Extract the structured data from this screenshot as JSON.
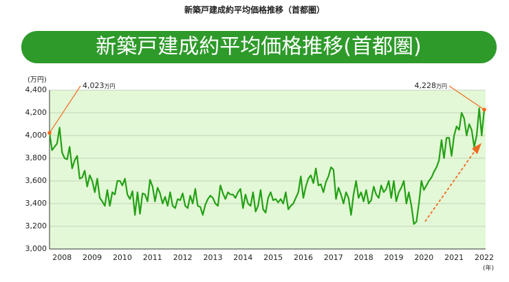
{
  "chart_data": {
    "type": "line",
    "title": "新築戸建成約平均価格推移（首都圏）",
    "banner": "新築戸建成約平均価格推移(首都圏)",
    "y_label": "(万円)",
    "x_label": "(年)",
    "categories": [
      null,
      null,
      null,
      null,
      null,
      "2008",
      null,
      null,
      null,
      null,
      null,
      null,
      null,
      null,
      null,
      null,
      null,
      "2009",
      null,
      null,
      null,
      null,
      null,
      null,
      null,
      null,
      null,
      null,
      null,
      "2010",
      null,
      null,
      null,
      null,
      null,
      null,
      null,
      null,
      null,
      null,
      null,
      "2011",
      null,
      null,
      null,
      null,
      null,
      null,
      null,
      null,
      null,
      null,
      null,
      "2012",
      null,
      null,
      null,
      null,
      null,
      null,
      null,
      null,
      null,
      null,
      null,
      "2013",
      null,
      null,
      null,
      null,
      null,
      null,
      null,
      null,
      null,
      null,
      null,
      "2014",
      null,
      null,
      null,
      null,
      null,
      null,
      null,
      null,
      null,
      null,
      null,
      "2015",
      null,
      null,
      null,
      null,
      null,
      null,
      null,
      null,
      null,
      null,
      null,
      "2016",
      null,
      null,
      null,
      null,
      null,
      null,
      null,
      null,
      null,
      null,
      null,
      "2017",
      null,
      null,
      null,
      null,
      null,
      null,
      null,
      null,
      null,
      null,
      null,
      "2018",
      null,
      null,
      null,
      null,
      null,
      null,
      null,
      null,
      null,
      null,
      null,
      "2019",
      null,
      null,
      null,
      null,
      null,
      null,
      null,
      null,
      null,
      null,
      null,
      "2020",
      null,
      null,
      null,
      null,
      null,
      null,
      null,
      null,
      null,
      null,
      null,
      "2021",
      null,
      null,
      null,
      null,
      null,
      null,
      null,
      null,
      null,
      null,
      null,
      "2022"
    ],
    "series": [
      {
        "name": "新築戸建成約平均価格",
        "color": "#23a015",
        "values": [
          4023,
          3870,
          3900,
          3930,
          4070,
          3850,
          3800,
          3790,
          3900,
          3710,
          3780,
          3820,
          3620,
          3630,
          3690,
          3550,
          3650,
          3600,
          3500,
          3620,
          3450,
          3420,
          3380,
          3520,
          3380,
          3500,
          3480,
          3600,
          3600,
          3560,
          3620,
          3480,
          3440,
          3510,
          3300,
          3500,
          3310,
          3490,
          3480,
          3420,
          3610,
          3550,
          3420,
          3540,
          3490,
          3400,
          3460,
          3380,
          3500,
          3380,
          3360,
          3440,
          3430,
          3490,
          3380,
          3360,
          3470,
          3400,
          3530,
          3380,
          3370,
          3300,
          3390,
          3440,
          3470,
          3450,
          3400,
          3380,
          3560,
          3490,
          3440,
          3500,
          3480,
          3480,
          3450,
          3500,
          3530,
          3360,
          3480,
          3400,
          3380,
          3500,
          3330,
          3380,
          3520,
          3350,
          3320,
          3450,
          3500,
          3430,
          3440,
          3410,
          3440,
          3400,
          3500,
          3350,
          3380,
          3400,
          3450,
          3500,
          3640,
          3450,
          3550,
          3620,
          3650,
          3580,
          3710,
          3560,
          3570,
          3500,
          3590,
          3640,
          3720,
          3700,
          3440,
          3540,
          3480,
          3400,
          3500,
          3450,
          3300,
          3480,
          3600,
          3450,
          3500,
          3420,
          3520,
          3400,
          3430,
          3550,
          3480,
          3450,
          3560,
          3500,
          3530,
          3600,
          3450,
          3600,
          3420,
          3500,
          3540,
          3600,
          3400,
          3500,
          3380,
          3220,
          3240,
          3400,
          3600,
          3520,
          3560,
          3600,
          3630,
          3680,
          3720,
          3780,
          3960,
          3800,
          3980,
          3980,
          3820,
          4000,
          4080,
          4050,
          4200,
          4150,
          4000,
          4100,
          4050,
          3900,
          4000,
          4240,
          4000,
          4228
        ]
      }
    ],
    "annotations": [
      {
        "text": "4,023",
        "unit": "万円"
      },
      {
        "text": "4,228",
        "unit": "万円"
      }
    ],
    "ylim": [
      3000,
      4400
    ],
    "yticks": [
      {
        "value": 3000,
        "label": "3,000"
      },
      {
        "value": 3200,
        "label": "3,200"
      },
      {
        "value": 3400,
        "label": "3,400"
      },
      {
        "value": 3600,
        "label": "3,600"
      },
      {
        "value": 3800,
        "label": "3,800"
      },
      {
        "value": 4000,
        "label": "4,000"
      },
      {
        "value": 4200,
        "label": "4,200"
      },
      {
        "value": 4400,
        "label": "4,400"
      }
    ],
    "grid": true,
    "background": "#e3f8d6",
    "annotation_color": "#f06a1e"
  }
}
